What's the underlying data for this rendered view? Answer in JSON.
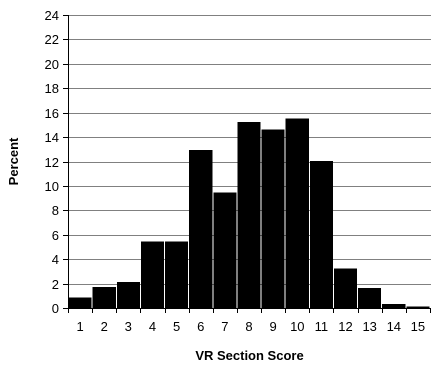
{
  "chart_data": {
    "type": "bar",
    "title": "",
    "xlabel": "VR Section Score",
    "ylabel": "Percent",
    "categories": [
      "1",
      "2",
      "3",
      "4",
      "5",
      "6",
      "7",
      "8",
      "9",
      "10",
      "11",
      "12",
      "13",
      "14",
      "15"
    ],
    "values": [
      0.8,
      1.7,
      2.1,
      5.4,
      5.4,
      12.9,
      9.4,
      15.2,
      14.6,
      15.5,
      12.0,
      3.2,
      1.6,
      0.3,
      0.1
    ],
    "ylim": [
      0,
      24
    ],
    "yticks": [
      0,
      2,
      4,
      6,
      8,
      10,
      12,
      14,
      16,
      18,
      20,
      22,
      24
    ],
    "grid": "horizontal",
    "bar_color": "#000000",
    "grid_color": "#808080"
  }
}
